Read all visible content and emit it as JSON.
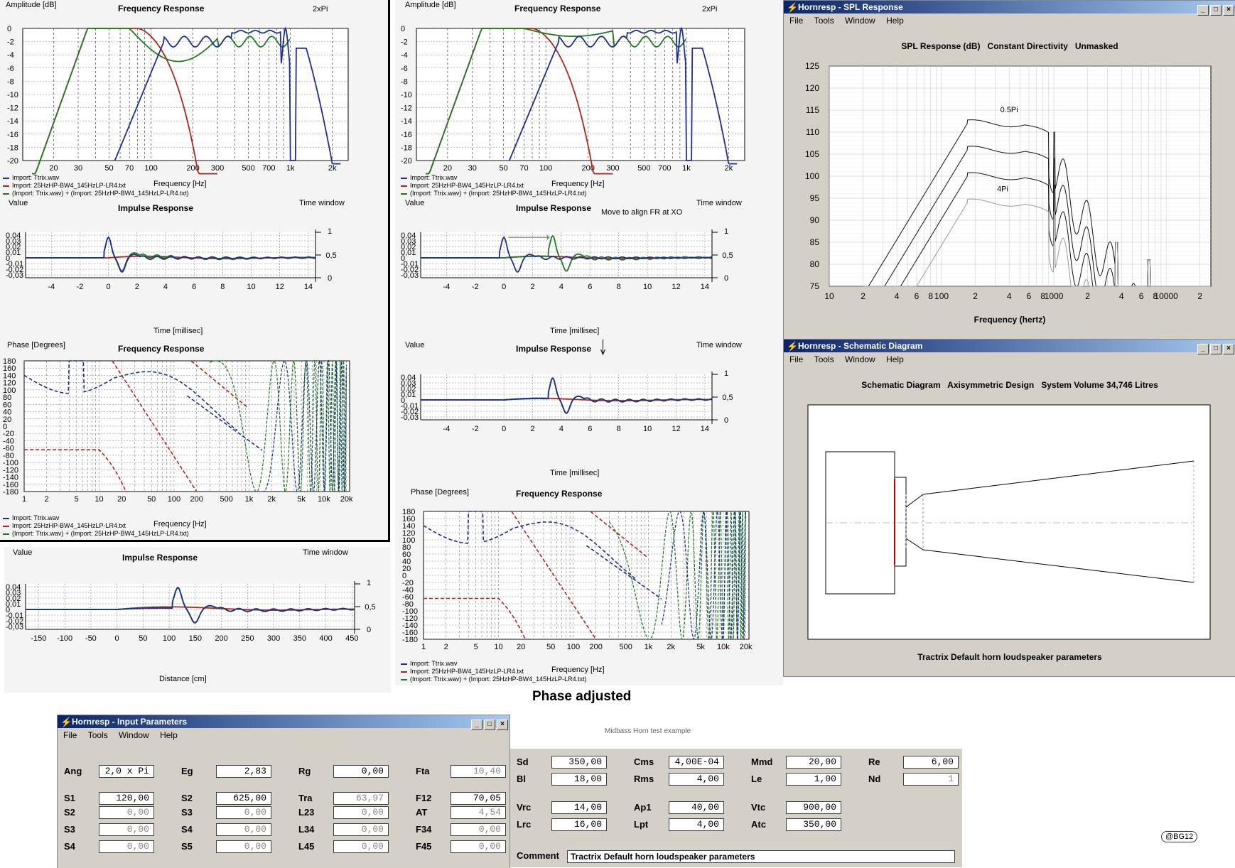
{
  "colors": {
    "blue": "#1f2f8f",
    "red": "#b0271a",
    "green": "#1f7a1f",
    "grid": "#999999",
    "window_bg": "#d4d0c8"
  },
  "legend": {
    "panel_a": [
      "Import: Ttrix.wav",
      "Import: 25HzHP-BW4_145HzLP-LR4.txt",
      "(Import: Ttrix.wav) + (Import: 25HzHP-BW4_145HzLP-LR4.txt)"
    ],
    "panel_a2": [
      "Import: Ttrix.wav",
      "Import: 25HzHP-BW4_145HzLP-LR4.txt",
      "(Import: Ttrix.wav) + (Import: 25HzHP-BW4_145HzLP-LR4.txt)"
    ],
    "panel_b": [
      "Import: Ttrix.wav",
      "Import: 25HzHP-BW4_145HzLP-LR4.txt",
      "(Import: Ttrix.wav) + (Import: 25HzHP-BW4_145HzLP-LR4.txt)"
    ],
    "panel_b2": [
      "Import: Ttrix.wav",
      "Import: 25HzHP-BW4_145HzLP-LR4.txt",
      "(Import: Ttrix.wav) + (Import: 25HzHP-BW4_145HzLP-LR4.txt)"
    ]
  },
  "freq_left": {
    "ylabel": "Amplitude [dB]",
    "title": "Frequency Response",
    "note": "2xPi",
    "xlabel": "Frequency [Hz]",
    "yticks": [
      "0",
      "-2",
      "-4",
      "-6",
      "-8",
      "-10",
      "-12",
      "-14",
      "-16",
      "-18",
      "-20"
    ],
    "xticks": [
      "20",
      "30",
      "50",
      "70",
      "100",
      "200",
      "300",
      "500",
      "700",
      "1k",
      "2k"
    ]
  },
  "freq_mid": {
    "ylabel": "Amplitude [dB]",
    "title": "Frequency Response",
    "note": "2xPi",
    "xlabel": "Frequency [Hz]",
    "yticks": [
      "0",
      "-2",
      "-4",
      "-6",
      "-8",
      "-10",
      "-12",
      "-14",
      "-16",
      "-18",
      "-20"
    ],
    "xticks": [
      "20",
      "30",
      "50",
      "70",
      "100",
      "200",
      "300",
      "500",
      "700",
      "1k",
      "2k"
    ]
  },
  "imp_left": {
    "ylabel": "Value",
    "title": "Impulse Response",
    "note": "Time window",
    "xlabel": "Time [millisec]",
    "yticks": [
      "0,04",
      "0,03",
      "0,02",
      "0,01",
      "0",
      "-0,01",
      "-0,02",
      "-0,03"
    ],
    "rticks": [
      "1",
      "0,5",
      "0"
    ],
    "xticks": [
      "-4",
      "-2",
      "0",
      "2",
      "4",
      "6",
      "8",
      "10",
      "12",
      "14"
    ]
  },
  "imp_mid": {
    "ylabel": "Value",
    "title": "Impulse Response",
    "note": "Time window",
    "xlabel": "Time [millisec]",
    "annotation": "Move to align FR at XO",
    "yticks": [
      "0,04",
      "0,03",
      "0,02",
      "0,01",
      "0",
      "-0,01",
      "-0,02",
      "-0,03"
    ],
    "rticks": [
      "1",
      "0,5",
      "0"
    ],
    "xticks": [
      "-4",
      "-2",
      "0",
      "2",
      "4",
      "6",
      "8",
      "10",
      "12",
      "14"
    ]
  },
  "imp_mid2": {
    "ylabel": "Value",
    "title": "Impulse Response",
    "note": "Time window",
    "xlabel": "Time [millisec]",
    "yticks": [
      "0,04",
      "0,03",
      "0,02",
      "0,01",
      "0",
      "-0,01",
      "-0,02",
      "-0,03"
    ],
    "rticks": [
      "1",
      "0,5",
      "0"
    ],
    "xticks": [
      "-4",
      "-2",
      "0",
      "2",
      "4",
      "6",
      "8",
      "10",
      "12",
      "14"
    ]
  },
  "imp_dist": {
    "ylabel": "Value",
    "title": "Impulse Response",
    "note": "Time window",
    "xlabel": "Distance [cm]",
    "yticks": [
      "0,04",
      "0,03",
      "0,02",
      "0,01",
      "0",
      "-0,01",
      "-0,02",
      "-0,03"
    ],
    "rticks": [
      "1",
      "0,5",
      "0"
    ],
    "xticks": [
      "-150",
      "-100",
      "-50",
      "0",
      "50",
      "100",
      "150",
      "200",
      "250",
      "300",
      "350",
      "400",
      "450"
    ]
  },
  "phase_left": {
    "ylabel": "Phase [Degrees]",
    "title": "Frequency Response",
    "xlabel": "Frequency [Hz]",
    "yticks": [
      "180",
      "160",
      "140",
      "120",
      "100",
      "80",
      "60",
      "40",
      "20",
      "0",
      "-20",
      "-40",
      "-60",
      "-80",
      "-100",
      "-120",
      "-140",
      "-160",
      "-180"
    ],
    "xticks": [
      "1",
      "2",
      "5",
      "10",
      "20",
      "50",
      "100",
      "200",
      "500",
      "1k",
      "2k",
      "5k",
      "10k",
      "20k"
    ]
  },
  "phase_mid": {
    "ylabel": "Phase [Degrees]",
    "title": "Frequency Response",
    "xlabel": "Frequency [Hz]",
    "yticks": [
      "180",
      "160",
      "140",
      "120",
      "100",
      "80",
      "60",
      "40",
      "20",
      "0",
      "-20",
      "-40",
      "-60",
      "-80",
      "-100",
      "-120",
      "-140",
      "-160",
      "-180"
    ],
    "xticks": [
      "1",
      "2",
      "5",
      "10",
      "20",
      "50",
      "100",
      "200",
      "500",
      "1k",
      "2k",
      "5k",
      "10k",
      "20k"
    ]
  },
  "caption": "Phase adjusted",
  "spl_window": {
    "title": "Hornresp - SPL Response",
    "menu": [
      "File",
      "Tools",
      "Window",
      "Help"
    ],
    "header": "SPL Response (dB)   Constant Directivity   Unmasked",
    "yticks": [
      "125",
      "120",
      "115",
      "110",
      "105",
      "100",
      "95",
      "90",
      "85",
      "80",
      "75"
    ],
    "xticks": [
      "10",
      "2",
      "4",
      "6",
      "8",
      "100",
      "2",
      "4",
      "6",
      "8",
      "1000",
      "2",
      "4",
      "6",
      "8",
      "10000",
      "2"
    ],
    "xlabel": "Frequency (hertz)",
    "label_top": "0.5Pi",
    "label_bottom": "4Pi"
  },
  "schem_window": {
    "title": "Hornresp - Schematic Diagram",
    "menu": [
      "File",
      "Tools",
      "Window",
      "Help"
    ],
    "header": "Schematic Diagram   Axisymmetric Design   System Volume 34,746 Litres",
    "footer": "Tractrix Default horn loudspeaker parameters"
  },
  "input_window": {
    "title": "Hornresp - Input Parameters",
    "menu": [
      "File",
      "Tools",
      "Window",
      "Help"
    ],
    "subtitle": "Midbass Horn test example",
    "fields": [
      {
        "label": "Ang",
        "value": "2,0 x Pi",
        "dis": false
      },
      {
        "label": "Eg",
        "value": "2,83",
        "dis": false
      },
      {
        "label": "Rg",
        "value": "0,00",
        "dis": false
      },
      {
        "label": "Fta",
        "value": "10,40",
        "dis": true
      },
      {
        "label": "S1",
        "value": "120,00",
        "dis": false
      },
      {
        "label": "S2",
        "value": "625,00",
        "dis": false
      },
      {
        "label": "Tra",
        "value": "63,97",
        "dis": true
      },
      {
        "label": "F12",
        "value": "70,05",
        "dis": false
      },
      {
        "label": "S2",
        "value": "0,00",
        "dis": true
      },
      {
        "label": "S3",
        "value": "0,00",
        "dis": true
      },
      {
        "label": "L23",
        "value": "0,00",
        "dis": true
      },
      {
        "label": "AT",
        "value": "4,54",
        "dis": true
      },
      {
        "label": "S3",
        "value": "0,00",
        "dis": true
      },
      {
        "label": "S4",
        "value": "0,00",
        "dis": true
      },
      {
        "label": "L34",
        "value": "0,00",
        "dis": true
      },
      {
        "label": "F34",
        "value": "0,00",
        "dis": true
      },
      {
        "label": "S4",
        "value": "0,00",
        "dis": true
      },
      {
        "label": "S5",
        "value": "0,00",
        "dis": true
      },
      {
        "label": "L45",
        "value": "0,00",
        "dis": true
      },
      {
        "label": "F45",
        "value": "0,00",
        "dis": true
      }
    ],
    "fields2": [
      {
        "label": "Sd",
        "value": "350,00",
        "dis": false
      },
      {
        "label": "Cms",
        "value": "4,00E-04",
        "dis": false
      },
      {
        "label": "Mmd",
        "value": "20,00",
        "dis": false
      },
      {
        "label": "Re",
        "value": "6,00",
        "dis": false
      },
      {
        "label": "Bl",
        "value": "18,00",
        "dis": false
      },
      {
        "label": "Rms",
        "value": "4,00",
        "dis": false
      },
      {
        "label": "Le",
        "value": "1,00",
        "dis": false
      },
      {
        "label": "Nd",
        "value": "1",
        "dis": true
      },
      {
        "label": "Vrc",
        "value": "14,00",
        "dis": false
      },
      {
        "label": "Ap1",
        "value": "40,00",
        "dis": false
      },
      {
        "label": "Vtc",
        "value": "900,00",
        "dis": false
      },
      {
        "label": "Lrc",
        "value": "16,00",
        "dis": false
      },
      {
        "label": "Lpt",
        "value": "4,00",
        "dis": false
      },
      {
        "label": "Atc",
        "value": "350,00",
        "dis": false
      }
    ],
    "comment_label": "Comment",
    "comment_value": "Tractrix Default horn loudspeaker parameters"
  },
  "badge": "@BG12"
}
